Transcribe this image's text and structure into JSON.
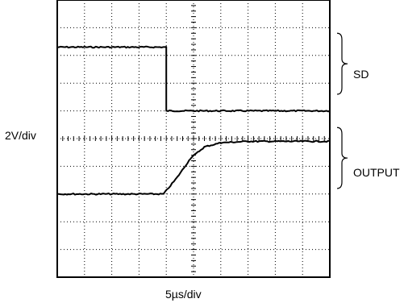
{
  "chart_data": {
    "type": "line",
    "title": "",
    "xlabel": "5µs/div",
    "ylabel": "2V/div",
    "grid": true,
    "x_divisions": 10,
    "y_divisions": 10,
    "series": [
      {
        "name": "SD",
        "color": "#000000",
        "points": [
          [
            0,
            8.3
          ],
          [
            4,
            8.3
          ],
          [
            4,
            6.0
          ],
          [
            10,
            6.0
          ]
        ]
      },
      {
        "name": "OUTPUT",
        "color": "#000000",
        "points": [
          [
            0,
            3.0
          ],
          [
            3.9,
            3.0
          ],
          [
            4.4,
            3.6
          ],
          [
            4.9,
            4.3
          ],
          [
            5.4,
            4.7
          ],
          [
            6.0,
            4.85
          ],
          [
            7.0,
            4.9
          ],
          [
            10,
            4.9
          ]
        ]
      }
    ],
    "braces": [
      {
        "label": "SD",
        "y_top": 8.8,
        "y_bottom": 6.6
      },
      {
        "label": "OUTPUT",
        "y_top": 5.4,
        "y_bottom": 3.2
      }
    ]
  }
}
